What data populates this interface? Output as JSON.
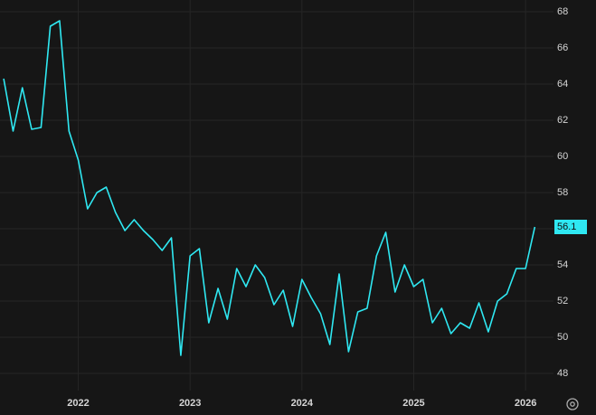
{
  "chart_data": {
    "type": "line",
    "x": [
      2021.333,
      2021.417,
      2021.5,
      2021.583,
      2021.667,
      2021.75,
      2021.833,
      2021.917,
      2022,
      2022.083,
      2022.167,
      2022.25,
      2022.333,
      2022.417,
      2022.5,
      2022.583,
      2022.667,
      2022.75,
      2022.833,
      2022.917,
      2023,
      2023.083,
      2023.167,
      2023.25,
      2023.333,
      2023.417,
      2023.5,
      2023.583,
      2023.667,
      2023.75,
      2023.833,
      2023.917,
      2024,
      2024.083,
      2024.167,
      2024.25,
      2024.333,
      2024.417,
      2024.5,
      2024.583,
      2024.667,
      2024.75,
      2024.833,
      2024.917,
      2025,
      2025.083,
      2025.167,
      2025.25,
      2025.333,
      2025.417,
      2025.5,
      2025.583,
      2025.667,
      2025.75,
      2025.833,
      2025.917,
      2026,
      2026.083
    ],
    "values": [
      64.3,
      61.4,
      63.8,
      61.5,
      61.6,
      67.2,
      67.5,
      61.4,
      59.8,
      57.1,
      58.0,
      58.3,
      56.9,
      55.9,
      56.5,
      55.9,
      55.4,
      54.8,
      55.5,
      49.0,
      54.5,
      54.9,
      50.8,
      52.7,
      51.0,
      53.8,
      52.8,
      54.0,
      53.3,
      51.8,
      52.6,
      50.6,
      53.2,
      52.2,
      51.3,
      49.6,
      53.5,
      49.2,
      51.4,
      51.6,
      54.5,
      55.8,
      52.5,
      54.0,
      52.8,
      53.2,
      50.8,
      51.6,
      50.2,
      50.8,
      50.5,
      51.9,
      50.3,
      52.0,
      52.4,
      53.8,
      53.8,
      56.1
    ],
    "color": "#2fe8f2",
    "xlim": [
      2021.3,
      2026.25
    ],
    "xticks": [
      2022,
      2023,
      2024,
      2025,
      2026
    ],
    "ylim": [
      47.05,
      68.65
    ],
    "yticks": [
      48,
      50,
      52,
      54,
      56,
      58,
      60,
      62,
      64,
      66,
      68
    ],
    "grid": true
  }
}
